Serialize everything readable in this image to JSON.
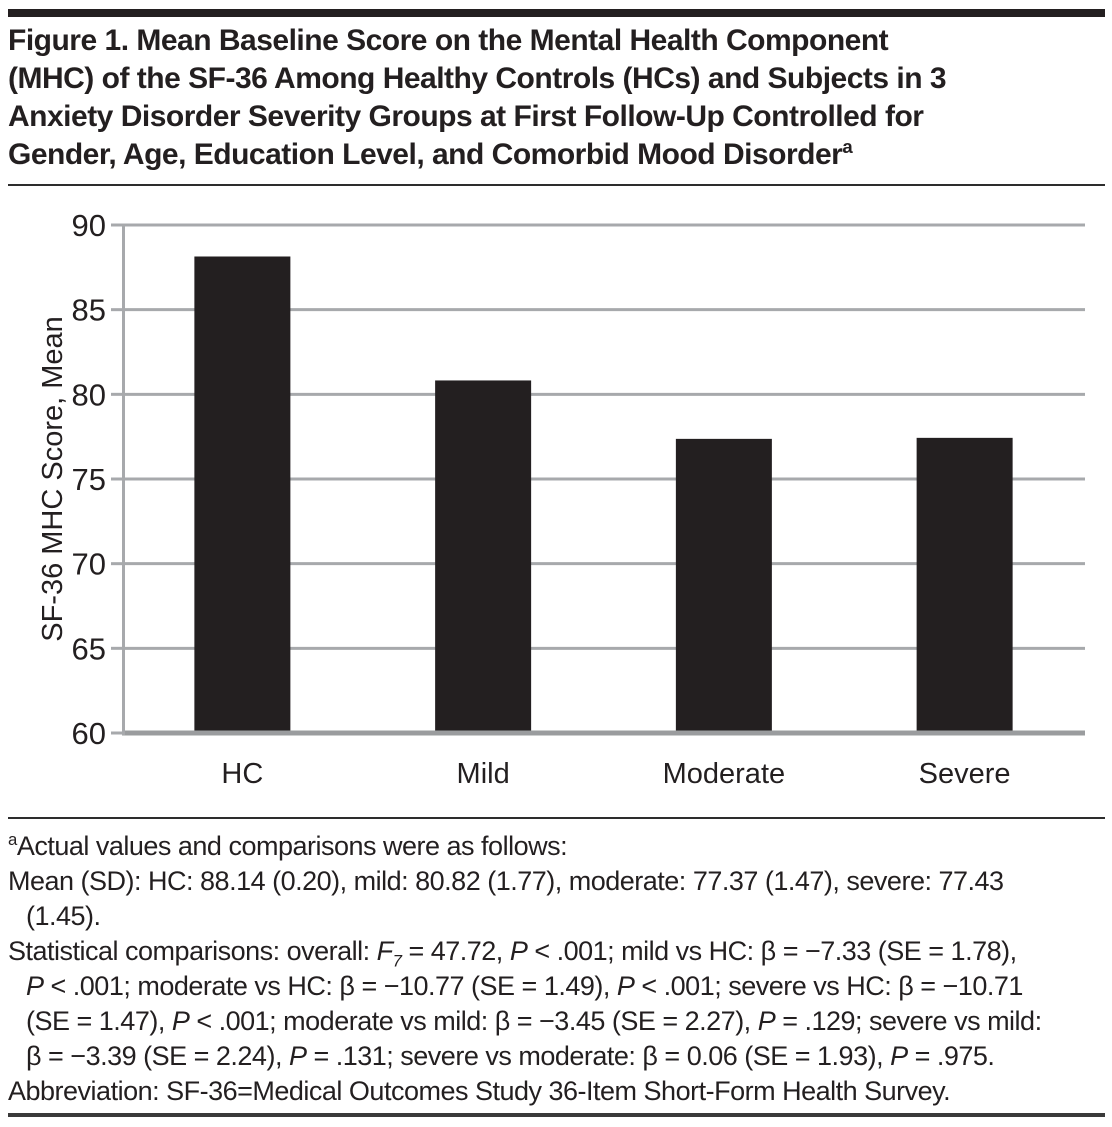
{
  "figure": {
    "title_lines": [
      {
        "segments": [
          {
            "t": "Figure 1. Mean Baseline Score on the Mental Health Component"
          }
        ]
      },
      {
        "segments": [
          {
            "t": "(MHC) of the SF-36 Among Healthy Controls (HCs) and Subjects in 3"
          }
        ]
      },
      {
        "segments": [
          {
            "t": "Anxiety Disorder Severity Groups at First Follow-Up Controlled for"
          }
        ]
      },
      {
        "segments": [
          {
            "t": "Gender, Age, Education Level, and Comorbid Mood Disorder"
          },
          {
            "t": "a",
            "sup": true
          }
        ]
      }
    ]
  },
  "chart_data": {
    "type": "bar",
    "categories": [
      "HC",
      "Mild",
      "Moderate",
      "Severe"
    ],
    "values": [
      88.14,
      80.82,
      77.37,
      77.43
    ],
    "sd": [
      0.2,
      1.77,
      1.47,
      1.45
    ],
    "title": "",
    "xlabel": "",
    "ylabel": "SF-36 MHC Score, Mean",
    "ylim": [
      60,
      90
    ],
    "yticks": [
      60,
      65,
      70,
      75,
      80,
      85,
      90
    ],
    "grid": true,
    "legend_position": "none",
    "bar_color": "#231f20",
    "grid_color": "#a7a9ac",
    "baseline_color": "#9a9c9e",
    "label_color": "#231f20"
  },
  "footnotes": {
    "lines": [
      {
        "indent": false,
        "segments": [
          {
            "t": "a",
            "sup": true
          },
          {
            "t": "Actual values and comparisons were as follows:"
          }
        ]
      },
      {
        "indent": false,
        "segments": [
          {
            "t": "Mean (SD): HC: 88.14 (0.20), mild: 80.82 (1.77), moderate: 77.37 (1.47), severe: 77.43"
          }
        ]
      },
      {
        "indent": true,
        "segments": [
          {
            "t": "(1.45)."
          }
        ]
      },
      {
        "indent": false,
        "segments": [
          {
            "t": "Statistical comparisons: overall: "
          },
          {
            "t": "F",
            "i": true
          },
          {
            "t": "7",
            "sub": true,
            "i": true
          },
          {
            "t": " = 47.72, "
          },
          {
            "t": "P",
            "i": true
          },
          {
            "t": " < .001; mild vs HC: β = −7.33 (SE = 1.78),"
          }
        ]
      },
      {
        "indent": true,
        "segments": [
          {
            "t": "P",
            "i": true
          },
          {
            "t": " < .001; moderate vs HC: β = −10.77 (SE = 1.49), "
          },
          {
            "t": "P",
            "i": true
          },
          {
            "t": " < .001; severe vs HC: β = −10.71"
          }
        ]
      },
      {
        "indent": true,
        "segments": [
          {
            "t": "(SE = 1.47), "
          },
          {
            "t": "P",
            "i": true
          },
          {
            "t": " < .001; moderate vs mild: β = −3.45 (SE = 2.27), "
          },
          {
            "t": "P",
            "i": true
          },
          {
            "t": " = .129; severe vs mild:"
          }
        ]
      },
      {
        "indent": true,
        "segments": [
          {
            "t": "β = −3.39 (SE = 2.24), "
          },
          {
            "t": "P",
            "i": true
          },
          {
            "t": " = .131; severe vs moderate: β = 0.06 (SE = 1.93), "
          },
          {
            "t": "P",
            "i": true
          },
          {
            "t": " = .975."
          }
        ]
      },
      {
        "indent": false,
        "segments": [
          {
            "t": "Abbreviation: SF-36=Medical Outcomes Study 36-Item Short-Form Health Survey."
          }
        ]
      }
    ]
  },
  "styles": {
    "rule_color": "#231f20",
    "thin_rule_color": "#2d2d2d",
    "text_color": "#231f20"
  }
}
